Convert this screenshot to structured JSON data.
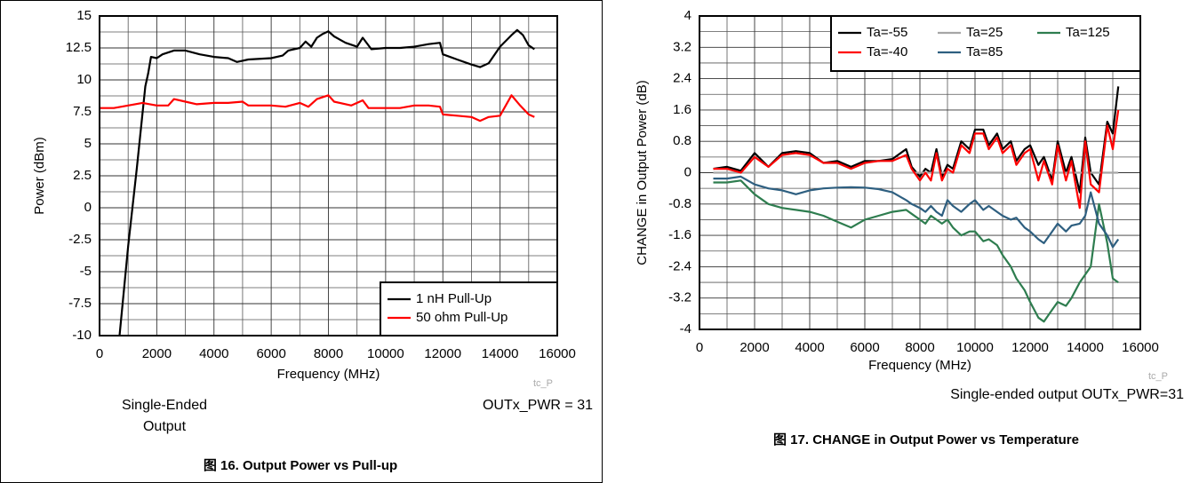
{
  "chart_data": [
    {
      "type": "line",
      "xlabel": "Frequency (MHz)",
      "ylabel": "Power (dBm)",
      "xlim": [
        0,
        16000
      ],
      "xticks": [
        0,
        2000,
        4000,
        6000,
        8000,
        10000,
        12000,
        14000,
        16000
      ],
      "ylim": [
        -10,
        15
      ],
      "yticks": [
        -10,
        -7.5,
        -5,
        -2.5,
        0,
        2.5,
        5,
        7.5,
        10,
        12.5,
        15
      ],
      "grid": true,
      "minor_grid": true,
      "legend": "lower right",
      "series": [
        {
          "name": "1 nH Pull-Up",
          "color": "#000000",
          "x": [
            700,
            1000,
            1300,
            1600,
            1700,
            1800,
            2000,
            2200,
            2600,
            3000,
            3500,
            4000,
            4500,
            4800,
            5200,
            6000,
            6400,
            6600,
            7000,
            7200,
            7400,
            7600,
            7800,
            8000,
            8200,
            8600,
            9000,
            9200,
            9500,
            10000,
            10500,
            11000,
            11500,
            11900,
            12000,
            12500,
            13000,
            13300,
            13600,
            14000,
            14400,
            14600,
            14800,
            15000,
            15200
          ],
          "values": [
            -10,
            -3,
            3,
            9.5,
            10.5,
            11.8,
            11.7,
            12,
            12.3,
            12.3,
            12,
            11.8,
            11.7,
            11.4,
            11.6,
            11.7,
            11.9,
            12.3,
            12.5,
            13,
            12.6,
            13.3,
            13.6,
            13.8,
            13.4,
            12.9,
            12.6,
            13.3,
            12.4,
            12.5,
            12.5,
            12.6,
            12.8,
            12.9,
            12,
            11.6,
            11.2,
            11,
            11.3,
            12.6,
            13.5,
            13.9,
            13.5,
            12.7,
            12.4
          ]
        },
        {
          "name": "50 ohm Pull-Up",
          "color": "#ff0000",
          "x": [
            0,
            500,
            1000,
            1500,
            2000,
            2400,
            2600,
            3000,
            3400,
            4000,
            4500,
            5000,
            5200,
            6000,
            6500,
            7000,
            7300,
            7600,
            8000,
            8200,
            8800,
            9200,
            9400,
            10000,
            10500,
            11000,
            11500,
            11900,
            12000,
            12500,
            13000,
            13300,
            13600,
            14000,
            14400,
            14700,
            15000,
            15200
          ],
          "values": [
            7.8,
            7.8,
            8,
            8.2,
            8,
            8,
            8.5,
            8.3,
            8.1,
            8.2,
            8.2,
            8.3,
            8,
            8,
            7.9,
            8.2,
            7.9,
            8.5,
            8.8,
            8.3,
            8,
            8.4,
            7.8,
            7.8,
            7.8,
            8,
            8,
            7.9,
            7.3,
            7.2,
            7.1,
            6.8,
            7.1,
            7.2,
            8.8,
            8,
            7.3,
            7.1
          ]
        }
      ],
      "watermark": "tc_P",
      "note_left": [
        "Single-Ended",
        "Output"
      ],
      "note_right": "OUTx_PWR = 31",
      "caption": "图 16. Output Power vs Pull-up"
    },
    {
      "type": "line",
      "xlabel": "Frequency (MHz)",
      "ylabel": "CHANGE in Output Power (dB)",
      "xlim": [
        0,
        16000
      ],
      "xticks": [
        0,
        2000,
        4000,
        6000,
        8000,
        10000,
        12000,
        14000,
        16000
      ],
      "ylim": [
        -4,
        4
      ],
      "yticks": [
        -4,
        -3.2,
        -2.4,
        -1.6,
        -0.8,
        0,
        0.8,
        1.6,
        2.4,
        3.2,
        4
      ],
      "grid": true,
      "minor_grid": true,
      "legend": "upper right",
      "x": [
        500,
        1000,
        1500,
        2000,
        2500,
        3000,
        3500,
        4000,
        4500,
        5000,
        5500,
        6000,
        6500,
        7000,
        7500,
        7700,
        8000,
        8200,
        8400,
        8600,
        8800,
        9000,
        9200,
        9500,
        9800,
        10000,
        10300,
        10500,
        10800,
        11000,
        11300,
        11500,
        11800,
        12000,
        12300,
        12500,
        12800,
        13000,
        13300,
        13500,
        13800,
        14000,
        14200,
        14500,
        14800,
        15000,
        15200
      ],
      "series": [
        {
          "name": "Ta=-55",
          "color": "#000000",
          "values": [
            0.1,
            0.15,
            0.05,
            0.5,
            0.15,
            0.5,
            0.55,
            0.5,
            0.25,
            0.3,
            0.15,
            0.3,
            0.3,
            0.35,
            0.6,
            0.15,
            -0.1,
            0.1,
            0.0,
            0.6,
            -0.1,
            0.2,
            0.1,
            0.8,
            0.6,
            1.1,
            1.1,
            0.7,
            1.0,
            0.6,
            0.8,
            0.3,
            0.6,
            0.7,
            0.2,
            0.4,
            -0.2,
            0.8,
            0.0,
            0.4,
            -0.5,
            0.9,
            0.0,
            -0.3,
            1.3,
            1.0,
            2.2
          ]
        },
        {
          "name": "Ta=25",
          "color": "#a6a6a6",
          "values": [
            0,
            0,
            0,
            0,
            0,
            0,
            0,
            0,
            0,
            0,
            0,
            0,
            0,
            0,
            0,
            0,
            0,
            0,
            0,
            0,
            0,
            0,
            0,
            0,
            0,
            0,
            0,
            0,
            0,
            0,
            0,
            0,
            0,
            0,
            0,
            0,
            0,
            0,
            0,
            0,
            0,
            0,
            0,
            0,
            0,
            0,
            0
          ]
        },
        {
          "name": "Ta=125",
          "color": "#2e7d4f",
          "values": [
            -0.25,
            -0.25,
            -0.2,
            -0.55,
            -0.8,
            -0.9,
            -0.95,
            -1.0,
            -1.1,
            -1.25,
            -1.4,
            -1.2,
            -1.1,
            -1.0,
            -0.95,
            -1.05,
            -1.2,
            -1.3,
            -1.1,
            -1.2,
            -1.3,
            -1.2,
            -1.4,
            -1.6,
            -1.5,
            -1.5,
            -1.75,
            -1.7,
            -1.85,
            -2.1,
            -2.4,
            -2.7,
            -3.0,
            -3.3,
            -3.7,
            -3.8,
            -3.5,
            -3.3,
            -3.4,
            -3.2,
            -2.8,
            -2.6,
            -2.4,
            -0.8,
            -1.8,
            -2.7,
            -2.8
          ]
        },
        {
          "name": "Ta=-40",
          "color": "#ff0000",
          "values": [
            0.1,
            0.1,
            0.0,
            0.4,
            0.15,
            0.45,
            0.5,
            0.45,
            0.25,
            0.25,
            0.1,
            0.25,
            0.3,
            0.3,
            0.45,
            0.1,
            -0.2,
            0.0,
            -0.2,
            0.5,
            -0.2,
            0.1,
            0.0,
            0.7,
            0.5,
            1.0,
            1.0,
            0.6,
            0.9,
            0.5,
            0.7,
            0.2,
            0.5,
            0.6,
            -0.2,
            0.3,
            -0.3,
            0.7,
            -0.2,
            0.3,
            -0.9,
            0.8,
            -0.3,
            -0.5,
            1.2,
            0.6,
            1.6
          ]
        },
        {
          "name": "Ta=85",
          "color": "#2e5f80",
          "values": [
            -0.15,
            -0.15,
            -0.1,
            -0.3,
            -0.4,
            -0.45,
            -0.55,
            -0.45,
            -0.4,
            -0.38,
            -0.37,
            -0.38,
            -0.42,
            -0.5,
            -0.7,
            -0.8,
            -0.9,
            -1.0,
            -0.85,
            -1.0,
            -1.1,
            -0.7,
            -0.85,
            -1.0,
            -0.8,
            -0.7,
            -0.95,
            -0.85,
            -1.0,
            -1.1,
            -1.2,
            -1.15,
            -1.4,
            -1.5,
            -1.7,
            -1.8,
            -1.5,
            -1.3,
            -1.5,
            -1.35,
            -1.3,
            -1.1,
            -0.5,
            -1.3,
            -1.6,
            -1.9,
            -1.7
          ]
        }
      ],
      "watermark": "tc_P",
      "note_right": "Single-ended output OUTx_PWR=31",
      "caption": "图 17. CHANGE in Output Power vs Temperature"
    }
  ]
}
